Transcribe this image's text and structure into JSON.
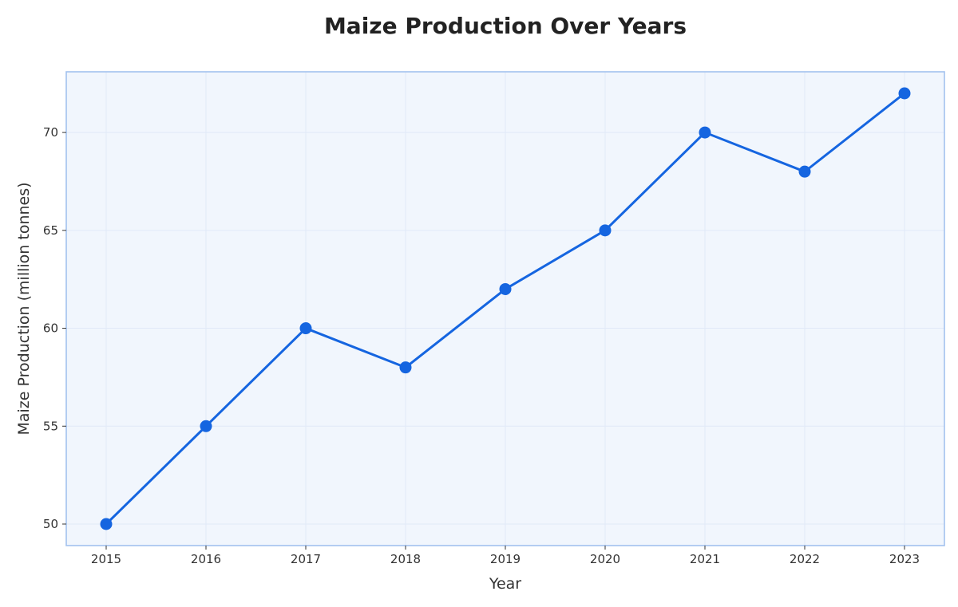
{
  "chart_data": {
    "type": "line",
    "title": "Maize Production Over Years",
    "xlabel": "Year",
    "ylabel": "Maize Production (million tonnes)",
    "x": [
      "2015",
      "2016",
      "2017",
      "2018",
      "2019",
      "2020",
      "2021",
      "2022",
      "2023"
    ],
    "series": [
      {
        "values": [
          50,
          55,
          60,
          58,
          62,
          65,
          70,
          68,
          72
        ]
      }
    ],
    "ylim": [
      48.9,
      73.1
    ],
    "yticks": [
      "50",
      "55",
      "60",
      "65",
      "70"
    ],
    "grid": true,
    "legend": "none",
    "colors": {
      "line": "#1565e0",
      "marker": "#1565e0",
      "plot_background": "#f1f6fd",
      "plot_border": "#a3c2ee",
      "grid": "#e1e9f8"
    }
  }
}
